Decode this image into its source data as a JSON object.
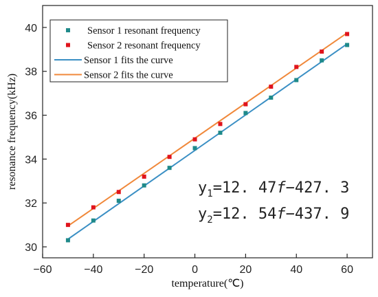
{
  "chart_data": {
    "type": "scatter",
    "xlabel": "temperature(℃)",
    "ylabel": "resonance frequency(kHz)",
    "xlim": [
      -60,
      70
    ],
    "ylim": [
      29.5,
      41
    ],
    "xticks": [
      -60,
      -40,
      -20,
      0,
      20,
      40,
      60
    ],
    "yticks": [
      30,
      32,
      34,
      36,
      38,
      40
    ],
    "grid": false,
    "legend_position": "top-left",
    "series": [
      {
        "name": "Sensor 1 resonant frequency",
        "kind": "points",
        "color": "#1f8a8a",
        "x": [
          -50,
          -40,
          -30,
          -20,
          -10,
          0,
          10,
          20,
          30,
          40,
          50,
          60
        ],
        "y": [
          30.3,
          31.2,
          32.1,
          32.8,
          33.6,
          34.5,
          35.2,
          36.1,
          36.8,
          37.6,
          38.5,
          39.2
        ]
      },
      {
        "name": "Sensor 2 resonant frequency",
        "kind": "points",
        "color": "#e0141c",
        "x": [
          -50,
          -40,
          -30,
          -20,
          -10,
          0,
          10,
          20,
          30,
          40,
          50,
          60
        ],
        "y": [
          31.0,
          31.8,
          32.5,
          33.2,
          34.1,
          34.9,
          35.6,
          36.5,
          37.3,
          38.2,
          38.9,
          39.7
        ]
      },
      {
        "name": "Sensor 1 fits the curve",
        "kind": "line",
        "color": "#3a8fc4",
        "x": [
          -50,
          60
        ],
        "y": [
          30.35,
          39.25
        ]
      },
      {
        "name": "Sensor 2 fits the curve",
        "kind": "line",
        "color": "#f0883a",
        "x": [
          -50,
          60
        ],
        "y": [
          30.95,
          39.75
        ]
      }
    ],
    "annotations": {
      "eq1": {
        "lhs": "y",
        "sub": "1",
        "rhs_pre": "=12. 47",
        "var": "f",
        "rhs_post": "−427. 3"
      },
      "eq2": {
        "lhs": "y",
        "sub": "2",
        "rhs_pre": "=12. 54",
        "var": "f",
        "rhs_post": "−437. 9"
      }
    }
  }
}
